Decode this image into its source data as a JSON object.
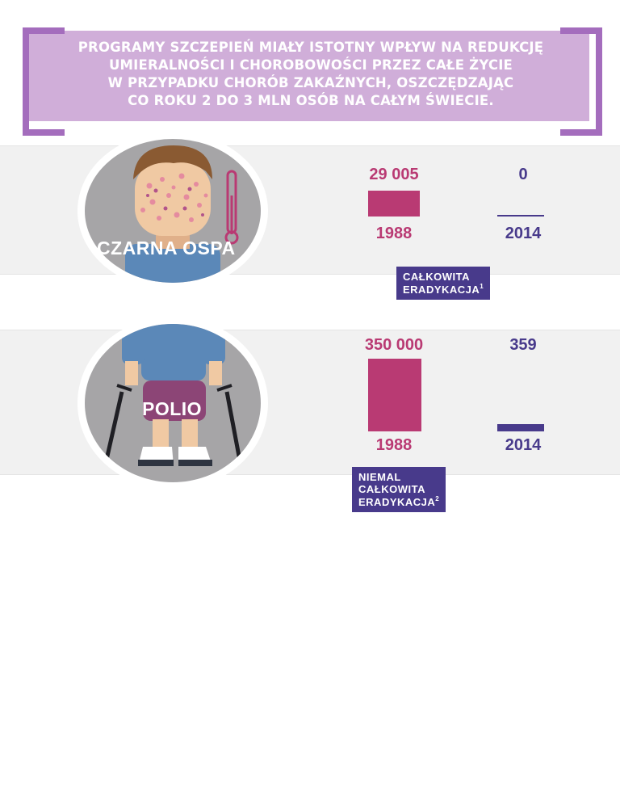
{
  "header": {
    "lines": [
      "PROGRAMY SZCZEPIEŃ MIAŁY ISTOTNY WPŁYW NA REDUKCJĘ",
      "UMIERALNOŚCI I CHOROBOWOŚCI PRZEZ CAŁE ŻYCIE",
      "W PRZYPADKU CHORÓB ZAKAŹNYCH, OSZCZĘDZAJĄC",
      "CO ROKU 2 DO 3 MLN OSÓB NA CAŁYM ŚWIECIE."
    ]
  },
  "colors": {
    "y1988": "#b93a73",
    "y2014": "#483a8b",
    "banner": "#d0aed9",
    "bracket": "#a46dbd"
  },
  "chart_data": [
    {
      "type": "bar",
      "title": "CZARNA OSPA",
      "categories": [
        "1988",
        "2014"
      ],
      "values": [
        29005,
        0
      ],
      "value_labels": [
        "29 005",
        "0"
      ],
      "badge": "CAŁKOWITA ERADYKACJA",
      "badge_ref": "1",
      "ylim": [
        0,
        29005
      ]
    },
    {
      "type": "bar",
      "title": "POLIO",
      "categories": [
        "1988",
        "2014"
      ],
      "values": [
        350000,
        359
      ],
      "value_labels": [
        "350 000",
        "359"
      ],
      "badge": "NIEMAL CAŁKOWITA ERADYKACJA",
      "badge_ref": "2",
      "ylim": [
        0,
        350000
      ]
    }
  ]
}
